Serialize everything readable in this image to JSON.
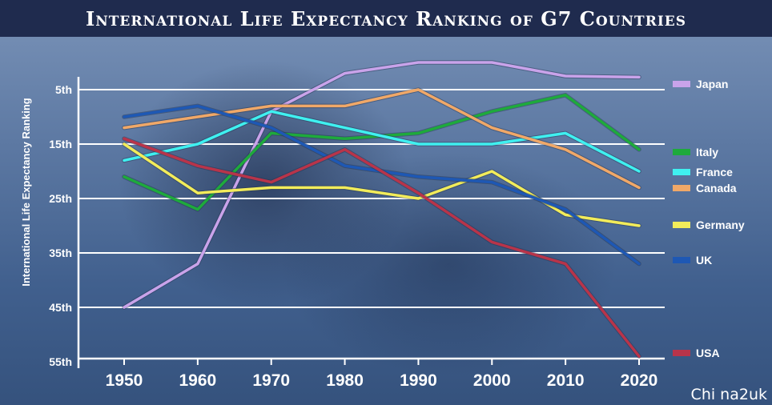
{
  "chart_data": {
    "type": "line",
    "title": "International Life Expectancy Ranking of G7 Countries",
    "xlabel": "",
    "ylabel": "International Life Expectancy Ranking",
    "x": [
      1950,
      1960,
      1970,
      1980,
      1990,
      2000,
      2010,
      2020
    ],
    "y_ticks": [
      "5th",
      "15th",
      "25th",
      "35th",
      "45th",
      "55th"
    ],
    "y_tick_values": [
      5,
      15,
      25,
      35,
      45,
      55
    ],
    "ylim": [
      55,
      0
    ],
    "grid": true,
    "legend_placement": "right, beside line ends",
    "series": [
      {
        "name": "Japan",
        "color": "#c9a3ea",
        "values": [
          45,
          37,
          9,
          2,
          0,
          0,
          2.5,
          2.7
        ]
      },
      {
        "name": "Italy",
        "color": "#1eaa3c",
        "values": [
          21,
          27,
          13,
          14,
          13,
          9,
          6,
          16
        ]
      },
      {
        "name": "France",
        "color": "#3ff0f0",
        "values": [
          18,
          15,
          9,
          12,
          15,
          15,
          13,
          20
        ]
      },
      {
        "name": "Canada",
        "color": "#f0a868",
        "values": [
          12,
          10,
          8,
          8,
          5,
          12,
          16,
          23
        ]
      },
      {
        "name": "Germany",
        "color": "#f2ec5a",
        "values": [
          15,
          24,
          23,
          23,
          25,
          20,
          28,
          30
        ]
      },
      {
        "name": "UK",
        "color": "#1e58b4",
        "values": [
          10,
          8,
          12,
          19,
          21,
          22,
          27,
          37
        ]
      },
      {
        "name": "USA",
        "color": "#b8344a",
        "values": [
          14,
          19,
          22,
          16,
          24,
          33,
          37,
          54
        ]
      }
    ]
  },
  "watermark": "Chi na2uk"
}
